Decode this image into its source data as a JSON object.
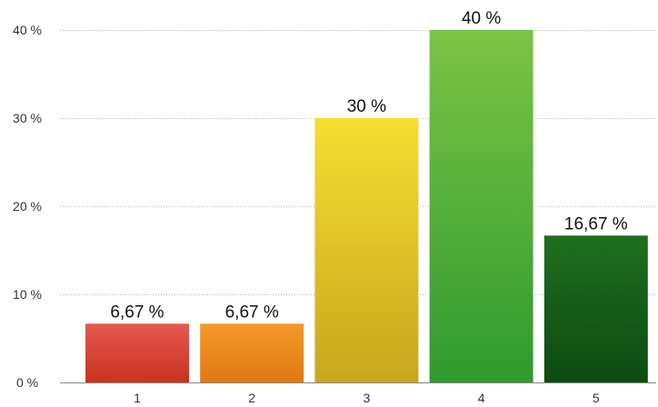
{
  "chart_data": {
    "type": "bar",
    "title": "",
    "categories": [
      "1",
      "2",
      "3",
      "4",
      "5"
    ],
    "values": [
      6.67,
      6.67,
      30,
      40,
      16.67
    ],
    "value_labels": [
      "6,67 %",
      "6,67 %",
      "30 %",
      "40 %",
      "16,67 %"
    ],
    "y_ticks": [
      0,
      10,
      20,
      30,
      40
    ],
    "y_tick_labels": [
      "0 %",
      "10 %",
      "20 %",
      "30 %",
      "40 %"
    ],
    "ylim": [
      0,
      40
    ],
    "xlabel": "",
    "ylabel": "",
    "grid": true,
    "bar_colors": [
      [
        "#e55a4f",
        "#c9321f"
      ],
      [
        "#f39a2c",
        "#e07812"
      ],
      [
        "#f6de30",
        "#c9a51e"
      ],
      [
        "#7cc447",
        "#2f9a2e"
      ],
      [
        "#1f6f1f",
        "#0d4a12"
      ]
    ]
  }
}
